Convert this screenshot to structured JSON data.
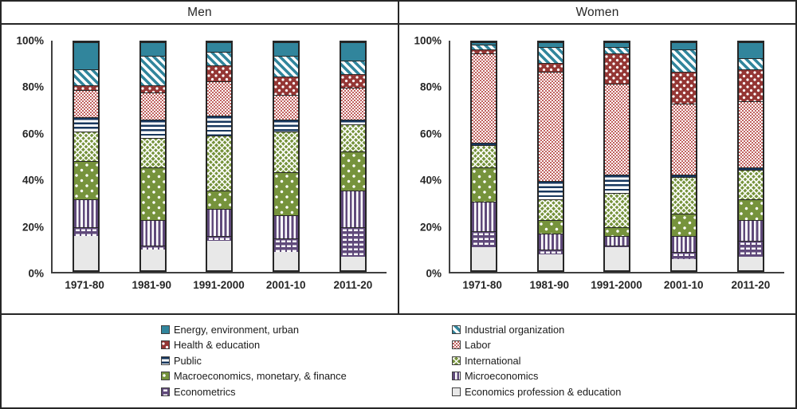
{
  "colors": {
    "teal": "#31859C",
    "dark_red": "#943634",
    "labor_red": "#C0625F",
    "navy": "#17375E",
    "olive_green": "#76933C",
    "purple": "#604A7B",
    "light_gray": "#E8E8E8",
    "border": "#262626"
  },
  "chart_data": {
    "type": "bar",
    "subtype": "100%-stacked-vertical",
    "categories": [
      "1971-80",
      "1981-90",
      "1991-2000",
      "2001-10",
      "2011-20"
    ],
    "y_ticks": [
      "100%",
      "80%",
      "60%",
      "40%",
      "20%",
      "0%"
    ],
    "ylim": [
      0,
      100
    ],
    "grid": "off",
    "legend_position": "bottom",
    "stack_order_bottom_to_top": [
      "economics_profession_education",
      "econometrics",
      "microeconomics",
      "macroeconomics_monetary_finance",
      "international",
      "public",
      "labor",
      "health_education",
      "industrial_organization",
      "energy_environment_urban"
    ],
    "panels": [
      {
        "title": "Men",
        "series": {
          "economics_profession_education": [
            15,
            9,
            13,
            8,
            6
          ],
          "econometrics": [
            4,
            2,
            2,
            6,
            13
          ],
          "microeconomics": [
            12,
            11,
            12,
            10,
            16
          ],
          "macroeconomics_monetary_finance": [
            17,
            23,
            8,
            19,
            17
          ],
          "international": [
            13,
            13,
            24,
            18,
            12
          ],
          "public": [
            6,
            8,
            9,
            5,
            2
          ],
          "labor": [
            12,
            12,
            15,
            11,
            14
          ],
          "health_education": [
            2,
            3,
            7,
            8,
            6
          ],
          "industrial_organization": [
            7,
            13,
            6,
            9,
            6
          ],
          "energy_environment_urban": [
            12,
            6,
            4,
            6,
            8
          ]
        }
      },
      {
        "title": "Women",
        "series": {
          "economics_profession_education": [
            10,
            7,
            10,
            5,
            6
          ],
          "econometrics": [
            7,
            2,
            1,
            3,
            7
          ],
          "microeconomics": [
            13,
            7,
            4,
            7,
            9
          ],
          "macroeconomics_monetary_finance": [
            15,
            6,
            4,
            10,
            9
          ],
          "international": [
            10,
            9,
            15,
            16,
            13
          ],
          "public": [
            1,
            8,
            8,
            1,
            1
          ],
          "labor": [
            39,
            48,
            40,
            31,
            29
          ],
          "health_education": [
            2,
            4,
            13,
            14,
            14
          ],
          "industrial_organization": [
            2,
            7,
            3,
            10,
            5
          ],
          "energy_environment_urban": [
            1,
            2,
            2,
            3,
            7
          ]
        }
      }
    ]
  },
  "legend": {
    "columns": [
      [
        {
          "key": "energy_environment_urban",
          "label": "Energy, environment, urban"
        },
        {
          "key": "health_education",
          "label": "Health & education"
        },
        {
          "key": "public",
          "label": "Public"
        },
        {
          "key": "macroeconomics_monetary_finance",
          "label": "Macroeconomics, monetary, & finance"
        },
        {
          "key": "econometrics",
          "label": "Econometrics"
        }
      ],
      [
        {
          "key": "industrial_organization",
          "label": "Industrial organization"
        },
        {
          "key": "labor",
          "label": "Labor"
        },
        {
          "key": "international",
          "label": "International"
        },
        {
          "key": "microeconomics",
          "label": "Microeconomics"
        },
        {
          "key": "economics_profession_education",
          "label": "Economics profession & education"
        }
      ]
    ]
  }
}
